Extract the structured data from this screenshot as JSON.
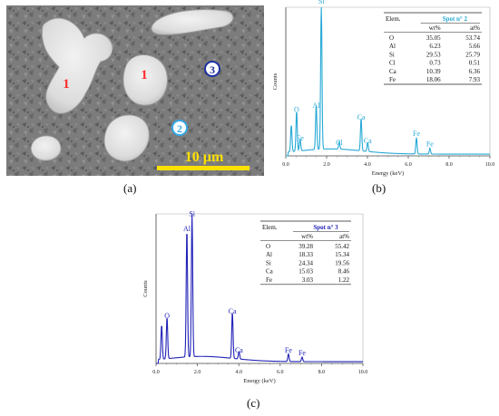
{
  "panels": {
    "a": {
      "label": "(a)",
      "region_labels": [
        "1",
        "1",
        "2",
        "3"
      ],
      "scale_bar": "10 µm",
      "colors": {
        "phase1": "#ff2b2b",
        "phase2": "#35a8e8",
        "phase3": "#1c2fa0",
        "scale": "#ffe100"
      }
    },
    "b": {
      "label": "(b)"
    },
    "c": {
      "label": "(c)"
    }
  },
  "chart_data": [
    {
      "type": "line",
      "panel": "b",
      "color": "#27a9d6",
      "xlabel": "Energy (keV)",
      "ylabel": "Counts",
      "xlim": [
        0,
        10
      ],
      "x_ticks": [
        "0.0",
        "2.0",
        "4.0",
        "6.0",
        "8.0",
        "10.0"
      ],
      "peaks": [
        {
          "x": 0.27,
          "y": 0.18,
          "label": ""
        },
        {
          "x": 0.53,
          "y": 0.27,
          "label": "O"
        },
        {
          "x": 0.7,
          "y": 0.08,
          "label": "Fe"
        },
        {
          "x": 1.49,
          "y": 0.3,
          "label": "Al"
        },
        {
          "x": 1.74,
          "y": 1.0,
          "label": "Si"
        },
        {
          "x": 2.62,
          "y": 0.05,
          "label": "Cl"
        },
        {
          "x": 3.69,
          "y": 0.22,
          "label": "Ca"
        },
        {
          "x": 4.01,
          "y": 0.06,
          "label": "Ca"
        },
        {
          "x": 6.4,
          "y": 0.11,
          "label": "Fe"
        },
        {
          "x": 7.06,
          "y": 0.04,
          "label": "Fe"
        }
      ],
      "table": {
        "elem_header": "Elem.",
        "spot": "Spot n° 2",
        "col1": "wt%",
        "col2": "at%",
        "rows": [
          {
            "el": "O",
            "wt": "35.05",
            "at": "53.74"
          },
          {
            "el": "Al",
            "wt": "6.23",
            "at": "5.66"
          },
          {
            "el": "Si",
            "wt": "29.53",
            "at": "25.79"
          },
          {
            "el": "Cl",
            "wt": "0.73",
            "at": "0.51"
          },
          {
            "el": "Ca",
            "wt": "10.39",
            "at": "6.36"
          },
          {
            "el": "Fe",
            "wt": "18.06",
            "at": "7.93"
          }
        ]
      }
    },
    {
      "type": "line",
      "panel": "c",
      "color": "#2222b8",
      "xlabel": "Energy (keV)",
      "ylabel": "Counts",
      "xlim": [
        0,
        10
      ],
      "x_ticks": [
        "0.0",
        "2.0",
        "4.0",
        "6.0",
        "8.0",
        "10.0"
      ],
      "peaks": [
        {
          "x": 0.27,
          "y": 0.23,
          "label": ""
        },
        {
          "x": 0.53,
          "y": 0.28,
          "label": "O"
        },
        {
          "x": 1.49,
          "y": 0.86,
          "label": "Al"
        },
        {
          "x": 1.74,
          "y": 0.96,
          "label": "Si"
        },
        {
          "x": 3.69,
          "y": 0.31,
          "label": "Ca"
        },
        {
          "x": 4.01,
          "y": 0.05,
          "label": "Ca"
        },
        {
          "x": 6.4,
          "y": 0.05,
          "label": "Fe"
        },
        {
          "x": 7.06,
          "y": 0.03,
          "label": "Fe"
        }
      ],
      "table": {
        "elem_header": "Elem.",
        "spot": "Spot n° 3",
        "col1": "wt%",
        "col2": "at%",
        "rows": [
          {
            "el": "O",
            "wt": "39.28",
            "at": "55.42"
          },
          {
            "el": "Al",
            "wt": "18.33",
            "at": "15.34"
          },
          {
            "el": "Si",
            "wt": "24.34",
            "at": "19.56"
          },
          {
            "el": "Ca",
            "wt": "15.03",
            "at": "8.46"
          },
          {
            "el": "Fe",
            "wt": "3.03",
            "at": "1.22"
          }
        ]
      }
    }
  ]
}
